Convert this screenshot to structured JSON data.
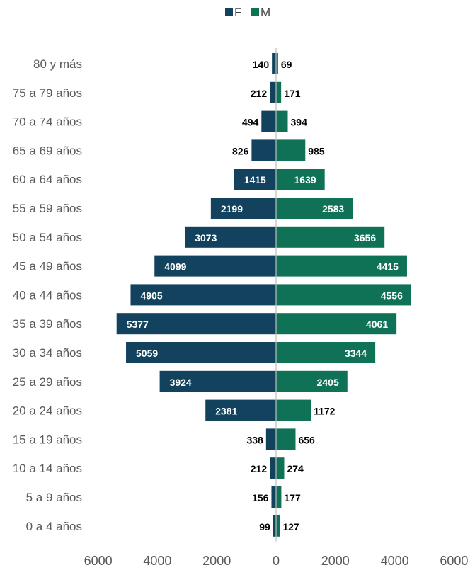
{
  "colors": {
    "F": "#12425e",
    "M": "#0f7256",
    "axis": "#bfbfbf",
    "leader": "#a6a6a6"
  },
  "chart_data": {
    "type": "bar",
    "orientation": "horizontal-diverging",
    "categories": [
      "80 y más",
      "75 a 79 años",
      "70 a 74 años",
      "65 a 69 años",
      "60 a 64 años",
      "55 a 59 años",
      "50 a 54 años",
      "45 a 49 años",
      "40 a 44 años",
      "35 a 39 años",
      "30 a 34 años",
      "25 a 29 años",
      "20 a 24 años",
      "15 a 19 años",
      "10 a 14 años",
      "5 a 9 años",
      "0 a 4 años"
    ],
    "series": [
      {
        "name": "F",
        "values": [
          140,
          212,
          494,
          826,
          1415,
          2199,
          3073,
          4099,
          4905,
          5377,
          5059,
          3924,
          2381,
          338,
          212,
          156,
          99
        ]
      },
      {
        "name": "M",
        "values": [
          69,
          171,
          394,
          985,
          1639,
          2583,
          3656,
          4415,
          4556,
          4061,
          3344,
          2405,
          1172,
          656,
          274,
          177,
          127
        ]
      }
    ],
    "xlim": [
      -6000,
      6000
    ],
    "xticks": [
      -6000,
      -4000,
      -2000,
      0,
      2000,
      4000,
      6000
    ],
    "xtick_labels": [
      "6000",
      "4000",
      "2000",
      "0",
      "2000",
      "4000",
      "6000"
    ],
    "legend": {
      "position": "top",
      "entries": [
        "F",
        "M"
      ]
    },
    "grid": false
  }
}
